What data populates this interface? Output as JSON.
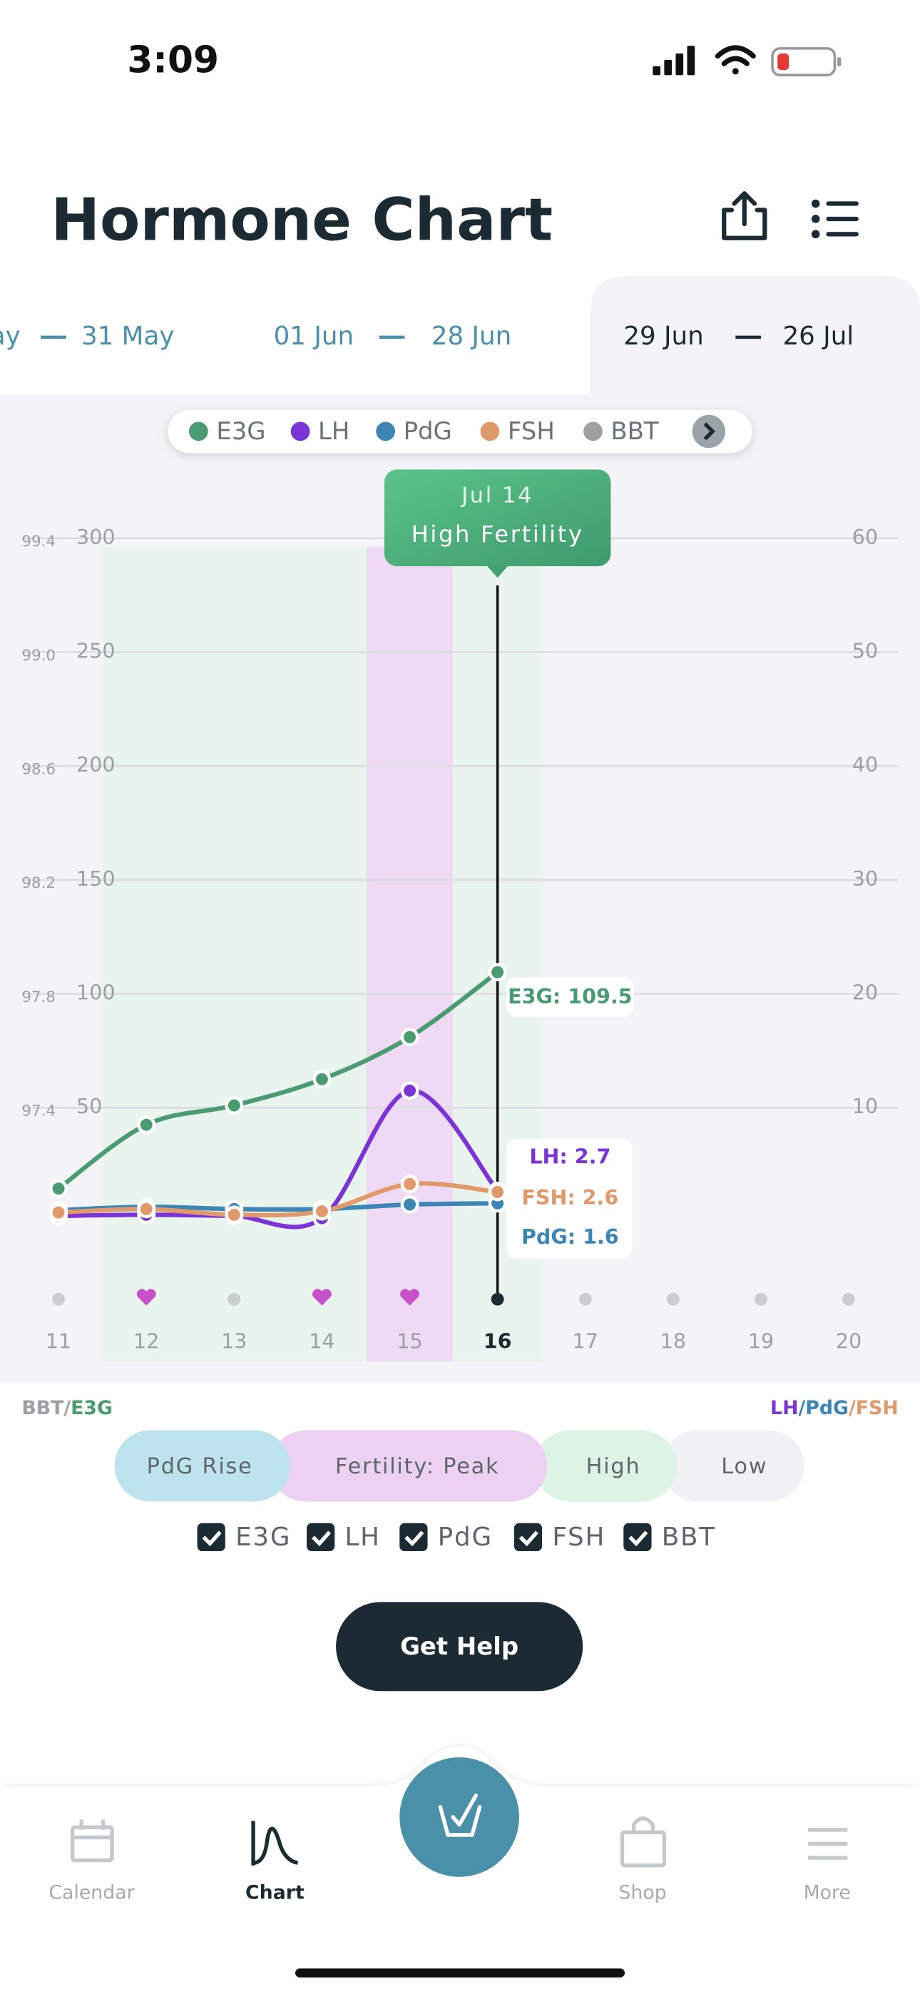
{
  "status_bar": {
    "time": "3:09"
  },
  "header": {
    "title": "Hormone Chart"
  },
  "date_tabs": [
    {
      "start": "ay",
      "end": "31 May"
    },
    {
      "start": "01 Jun",
      "end": "28 Jun"
    },
    {
      "start": "29 Jun",
      "end": "26 Jul"
    }
  ],
  "chart_data": {
    "type": "line",
    "categories": [
      "11",
      "12",
      "13",
      "14",
      "15",
      "16",
      "17",
      "18",
      "19",
      "20"
    ],
    "series": [
      {
        "name": "E3G",
        "color": "#4a9a72",
        "axis": "y",
        "values": [
          14.5,
          42.5,
          51,
          62.5,
          81,
          109.5,
          null,
          null,
          null,
          null
        ],
        "value_labels": [
          null,
          null,
          null,
          null,
          null,
          "E3G: 109.5",
          null,
          null,
          null,
          null
        ]
      },
      {
        "name": "LH",
        "color": "#7b35d6",
        "axis": "y2",
        "values": [
          0.5,
          0.6,
          0.5,
          0.3,
          11.5,
          2.7,
          null,
          null,
          null,
          null
        ],
        "value_labels": [
          null,
          null,
          null,
          null,
          null,
          "LH: 2.7",
          null,
          null,
          null,
          null
        ]
      },
      {
        "name": "PdG",
        "color": "#3d85b5",
        "axis": "y2",
        "values": [
          1.0,
          1.3,
          1.1,
          1.1,
          1.5,
          1.6,
          null,
          null,
          null,
          null
        ],
        "value_labels": [
          null,
          null,
          null,
          null,
          null,
          "PdG: 1.6",
          null,
          null,
          null,
          null
        ]
      },
      {
        "name": "FSH",
        "color": "#e0996b",
        "axis": "y2",
        "values": [
          0.8,
          1.1,
          0.6,
          0.9,
          3.3,
          2.6,
          null,
          null,
          null,
          null
        ],
        "value_labels": [
          null,
          null,
          null,
          null,
          null,
          "FSH: 2.6",
          null,
          null,
          null,
          null
        ]
      },
      {
        "name": "BBT",
        "color": "#a0a0a0",
        "axis": "bbt",
        "values": [
          null,
          null,
          null,
          null,
          null,
          null,
          null,
          null,
          null,
          null
        ]
      }
    ],
    "ylim": [
      0,
      300
    ],
    "yticks": [
      50,
      100,
      150,
      200,
      250,
      300
    ],
    "y2lim": [
      0,
      60
    ],
    "y2ticks": [
      10,
      20,
      30,
      40,
      50,
      60
    ],
    "bbt_lim": [
      97.0,
      99.4
    ],
    "bbt_ticks": [
      97.4,
      97.8,
      98.2,
      98.6,
      {
        "value": 99.0,
        "label": "99.0"
      },
      99.4
    ],
    "grid": true,
    "tooltip": {
      "date": "Jul 14",
      "status": "High Fertility"
    },
    "left_axis_caption": [
      "BBT/",
      "E3G"
    ],
    "right_axis_caption": [
      "LH",
      "/PdG",
      "/FSH"
    ]
  },
  "phase_legend": [
    "PdG Rise",
    "Fertility: Peak",
    "High",
    "Low"
  ],
  "button": "Get Help",
  "nav": [
    "Calendar",
    "Chart",
    "Shop",
    "More"
  ]
}
